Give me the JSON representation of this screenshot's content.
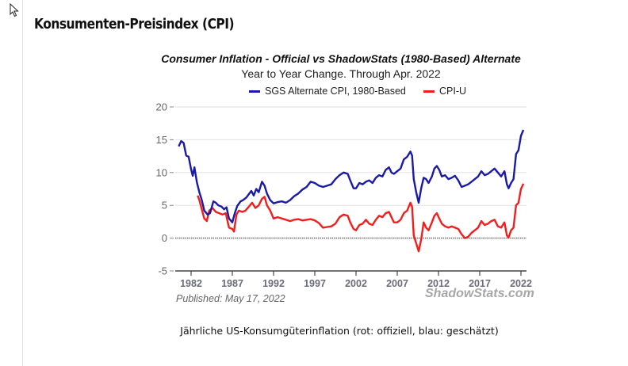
{
  "page": {
    "title": "Konsumenten-Preisindex (CPI)",
    "caption": "Jährliche US-Konsumgüterinflation (rot: offiziell, blau: geschätzt)"
  },
  "chart_data": {
    "type": "line",
    "title": "Consumer Inflation - Official vs ShadowStats (1980-Based) Alternate",
    "subtitle": "Year to Year Change. Through Apr. 2022",
    "published": "Published: May 17, 2022",
    "watermark": "ShadowStats.com",
    "xlabel": "",
    "ylabel": "",
    "xlim": [
      1980.3,
      2022.5
    ],
    "ylim": [
      -5,
      20
    ],
    "yticks": [
      -5,
      0,
      5,
      10,
      15,
      20
    ],
    "ytick_labels": [
      "-5",
      "0",
      "5",
      "10",
      "15",
      "20"
    ],
    "xticks": [
      1982,
      1987,
      1992,
      1997,
      2002,
      2007,
      2012,
      2017,
      2022
    ],
    "xtick_labels": [
      "1982",
      "1987",
      "1992",
      "1997",
      "2002",
      "2007",
      "2012",
      "2017",
      "2022"
    ],
    "grid": true,
    "legend_position": "top-center",
    "series": [
      {
        "name": "SGS Alternate CPI, 1980-Based",
        "color": "#1a1aa6",
        "points": [
          [
            1980.5,
            14.0
          ],
          [
            1980.8,
            14.8
          ],
          [
            1981.1,
            14.5
          ],
          [
            1981.4,
            12.6
          ],
          [
            1981.7,
            12.4
          ],
          [
            1982.0,
            10.5
          ],
          [
            1982.2,
            9.5
          ],
          [
            1982.4,
            10.8
          ],
          [
            1982.7,
            8.5
          ],
          [
            1983.0,
            7.0
          ],
          [
            1983.3,
            5.8
          ],
          [
            1983.6,
            4.2
          ],
          [
            1984.0,
            3.6
          ],
          [
            1984.3,
            3.8
          ],
          [
            1984.7,
            5.6
          ],
          [
            1985.0,
            5.4
          ],
          [
            1985.3,
            5.0
          ],
          [
            1985.7,
            4.8
          ],
          [
            1986.0,
            4.4
          ],
          [
            1986.3,
            4.7
          ],
          [
            1986.6,
            3.0
          ],
          [
            1987.0,
            2.4
          ],
          [
            1987.3,
            3.8
          ],
          [
            1987.6,
            4.9
          ],
          [
            1988.0,
            5.6
          ],
          [
            1988.3,
            5.8
          ],
          [
            1988.7,
            6.2
          ],
          [
            1989.0,
            6.7
          ],
          [
            1989.3,
            7.2
          ],
          [
            1989.6,
            6.5
          ],
          [
            1989.9,
            7.5
          ],
          [
            1990.2,
            7.0
          ],
          [
            1990.6,
            8.6
          ],
          [
            1990.9,
            8.0
          ],
          [
            1991.2,
            6.8
          ],
          [
            1991.6,
            5.8
          ],
          [
            1992.0,
            5.3
          ],
          [
            1992.5,
            5.5
          ],
          [
            1993.0,
            5.6
          ],
          [
            1993.5,
            5.4
          ],
          [
            1994.0,
            5.8
          ],
          [
            1994.5,
            6.4
          ],
          [
            1995.0,
            6.8
          ],
          [
            1995.5,
            7.4
          ],
          [
            1996.0,
            7.8
          ],
          [
            1996.5,
            8.6
          ],
          [
            1997.0,
            8.4
          ],
          [
            1997.5,
            8.0
          ],
          [
            1998.0,
            7.8
          ],
          [
            1998.5,
            8.0
          ],
          [
            1999.0,
            8.2
          ],
          [
            1999.5,
            9.0
          ],
          [
            2000.0,
            9.6
          ],
          [
            2000.5,
            10.0
          ],
          [
            2001.0,
            9.8
          ],
          [
            2001.3,
            8.8
          ],
          [
            2001.7,
            7.6
          ],
          [
            2002.0,
            7.6
          ],
          [
            2002.4,
            8.4
          ],
          [
            2002.8,
            8.2
          ],
          [
            2003.2,
            8.6
          ],
          [
            2003.6,
            8.8
          ],
          [
            2004.0,
            8.4
          ],
          [
            2004.4,
            9.2
          ],
          [
            2004.8,
            9.6
          ],
          [
            2005.2,
            9.4
          ],
          [
            2005.6,
            10.4
          ],
          [
            2006.0,
            10.8
          ],
          [
            2006.3,
            10.0
          ],
          [
            2006.6,
            9.8
          ],
          [
            2007.0,
            10.2
          ],
          [
            2007.4,
            10.6
          ],
          [
            2007.8,
            12.0
          ],
          [
            2008.2,
            12.4
          ],
          [
            2008.6,
            13.2
          ],
          [
            2008.8,
            12.6
          ],
          [
            2009.0,
            9.0
          ],
          [
            2009.3,
            7.0
          ],
          [
            2009.6,
            5.4
          ],
          [
            2009.9,
            7.6
          ],
          [
            2010.2,
            9.2
          ],
          [
            2010.5,
            9.0
          ],
          [
            2010.8,
            8.4
          ],
          [
            2011.2,
            9.4
          ],
          [
            2011.5,
            10.6
          ],
          [
            2011.8,
            11.0
          ],
          [
            2012.1,
            10.4
          ],
          [
            2012.4,
            9.4
          ],
          [
            2012.8,
            9.6
          ],
          [
            2013.2,
            9.0
          ],
          [
            2013.6,
            9.2
          ],
          [
            2014.0,
            9.5
          ],
          [
            2014.4,
            8.8
          ],
          [
            2014.8,
            7.8
          ],
          [
            2015.2,
            8.0
          ],
          [
            2015.6,
            8.2
          ],
          [
            2016.0,
            8.6
          ],
          [
            2016.4,
            9.0
          ],
          [
            2016.8,
            9.4
          ],
          [
            2017.2,
            10.2
          ],
          [
            2017.6,
            9.6
          ],
          [
            2018.0,
            9.8
          ],
          [
            2018.4,
            10.2
          ],
          [
            2018.8,
            10.6
          ],
          [
            2019.2,
            10.0
          ],
          [
            2019.6,
            9.4
          ],
          [
            2020.0,
            10.2
          ],
          [
            2020.3,
            8.2
          ],
          [
            2020.5,
            7.6
          ],
          [
            2020.8,
            8.4
          ],
          [
            2021.1,
            9.0
          ],
          [
            2021.4,
            12.8
          ],
          [
            2021.7,
            13.4
          ],
          [
            2022.0,
            15.6
          ],
          [
            2022.3,
            16.5
          ]
        ]
      },
      {
        "name": "CPI-U",
        "color": "#f21d1d",
        "points": [
          [
            1982.8,
            6.5
          ],
          [
            1983.0,
            5.8
          ],
          [
            1983.3,
            4.4
          ],
          [
            1983.6,
            3.0
          ],
          [
            1983.9,
            2.6
          ],
          [
            1984.2,
            4.2
          ],
          [
            1984.6,
            4.6
          ],
          [
            1985.0,
            4.0
          ],
          [
            1985.4,
            3.8
          ],
          [
            1985.8,
            3.6
          ],
          [
            1986.2,
            3.8
          ],
          [
            1986.6,
            1.6
          ],
          [
            1987.0,
            1.4
          ],
          [
            1987.2,
            1.0
          ],
          [
            1987.5,
            3.6
          ],
          [
            1987.8,
            4.2
          ],
          [
            1988.2,
            4.0
          ],
          [
            1988.6,
            4.2
          ],
          [
            1989.0,
            4.8
          ],
          [
            1989.4,
            5.4
          ],
          [
            1989.8,
            4.6
          ],
          [
            1990.2,
            5.0
          ],
          [
            1990.6,
            6.0
          ],
          [
            1990.9,
            6.3
          ],
          [
            1991.2,
            5.0
          ],
          [
            1991.6,
            4.2
          ],
          [
            1992.0,
            3.0
          ],
          [
            1992.5,
            3.2
          ],
          [
            1993.0,
            3.0
          ],
          [
            1993.5,
            2.8
          ],
          [
            1994.0,
            2.6
          ],
          [
            1994.5,
            2.8
          ],
          [
            1995.0,
            2.9
          ],
          [
            1995.5,
            2.7
          ],
          [
            1996.0,
            2.8
          ],
          [
            1996.5,
            2.9
          ],
          [
            1997.0,
            2.7
          ],
          [
            1997.5,
            2.3
          ],
          [
            1998.0,
            1.6
          ],
          [
            1998.5,
            1.7
          ],
          [
            1999.0,
            1.8
          ],
          [
            1999.5,
            2.2
          ],
          [
            2000.0,
            3.2
          ],
          [
            2000.5,
            3.6
          ],
          [
            2001.0,
            3.4
          ],
          [
            2001.3,
            2.4
          ],
          [
            2001.7,
            1.4
          ],
          [
            2002.0,
            1.2
          ],
          [
            2002.4,
            2.0
          ],
          [
            2002.8,
            2.2
          ],
          [
            2003.2,
            2.8
          ],
          [
            2003.6,
            2.2
          ],
          [
            2004.0,
            2.0
          ],
          [
            2004.4,
            2.8
          ],
          [
            2004.8,
            3.4
          ],
          [
            2005.2,
            3.2
          ],
          [
            2005.6,
            3.8
          ],
          [
            2006.0,
            4.0
          ],
          [
            2006.3,
            3.2
          ],
          [
            2006.6,
            2.4
          ],
          [
            2007.0,
            2.4
          ],
          [
            2007.4,
            2.8
          ],
          [
            2007.8,
            3.8
          ],
          [
            2008.2,
            4.2
          ],
          [
            2008.6,
            5.4
          ],
          [
            2008.8,
            4.8
          ],
          [
            2009.0,
            0.4
          ],
          [
            2009.3,
            -0.8
          ],
          [
            2009.6,
            -2.0
          ],
          [
            2009.9,
            -0.2
          ],
          [
            2010.2,
            2.4
          ],
          [
            2010.5,
            1.6
          ],
          [
            2010.8,
            1.2
          ],
          [
            2011.2,
            2.4
          ],
          [
            2011.5,
            3.4
          ],
          [
            2011.8,
            3.8
          ],
          [
            2012.1,
            3.0
          ],
          [
            2012.4,
            2.2
          ],
          [
            2012.8,
            1.8
          ],
          [
            2013.2,
            1.6
          ],
          [
            2013.6,
            1.8
          ],
          [
            2014.0,
            1.6
          ],
          [
            2014.4,
            1.4
          ],
          [
            2014.8,
            0.6
          ],
          [
            2015.2,
            0.0
          ],
          [
            2015.6,
            0.2
          ],
          [
            2016.0,
            0.8
          ],
          [
            2016.4,
            1.2
          ],
          [
            2016.8,
            1.6
          ],
          [
            2017.2,
            2.6
          ],
          [
            2017.6,
            2.0
          ],
          [
            2018.0,
            2.2
          ],
          [
            2018.4,
            2.6
          ],
          [
            2018.8,
            2.8
          ],
          [
            2019.2,
            1.8
          ],
          [
            2019.6,
            1.6
          ],
          [
            2020.0,
            2.4
          ],
          [
            2020.3,
            0.4
          ],
          [
            2020.5,
            0.1
          ],
          [
            2020.8,
            1.2
          ],
          [
            2021.1,
            1.6
          ],
          [
            2021.4,
            5.0
          ],
          [
            2021.7,
            5.4
          ],
          [
            2022.0,
            7.5
          ],
          [
            2022.3,
            8.3
          ]
        ]
      }
    ]
  }
}
